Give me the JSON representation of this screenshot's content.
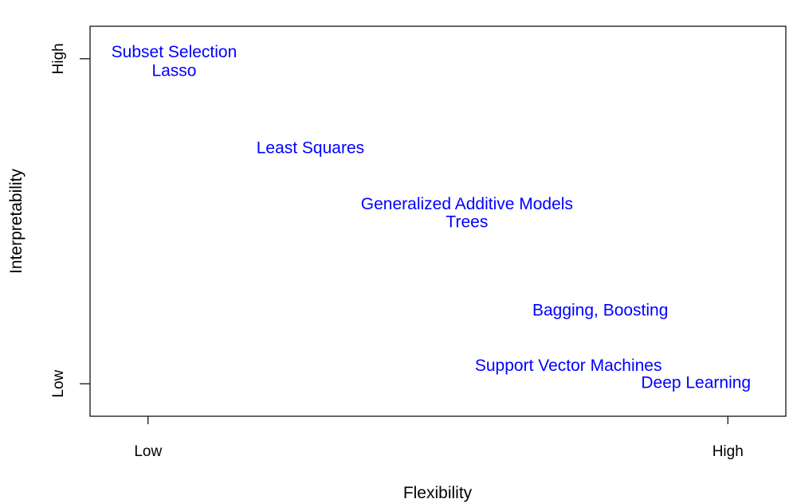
{
  "chart_data": {
    "type": "scatter",
    "title": "",
    "xlabel": "Flexibility",
    "ylabel": "Interpretability",
    "xlim": [
      -0.1,
      1.1
    ],
    "ylim": [
      -0.1,
      1.1
    ],
    "grid": false,
    "label_color": "#0000ff",
    "axis_color": "#000000",
    "x_ticks": [
      {
        "value": 0,
        "label": "Low"
      },
      {
        "value": 1,
        "label": "High"
      }
    ],
    "y_ticks": [
      {
        "value": 0,
        "label": "Low"
      },
      {
        "value": 1,
        "label": "High"
      }
    ],
    "points": [
      {
        "label": "Subset Selection",
        "x": 0.045,
        "y": 1.02
      },
      {
        "label": "Lasso",
        "x": 0.045,
        "y": 0.963
      },
      {
        "label": "Least Squares",
        "x": 0.28,
        "y": 0.725
      },
      {
        "label": "Generalized Additive Models",
        "x": 0.55,
        "y": 0.553
      },
      {
        "label": "Trees",
        "x": 0.55,
        "y": 0.498
      },
      {
        "label": "Bagging, Boosting",
        "x": 0.78,
        "y": 0.226
      },
      {
        "label": "Support Vector Machines",
        "x": 0.725,
        "y": 0.056
      },
      {
        "label": "Deep Learning",
        "x": 0.945,
        "y": 0.003
      }
    ]
  }
}
